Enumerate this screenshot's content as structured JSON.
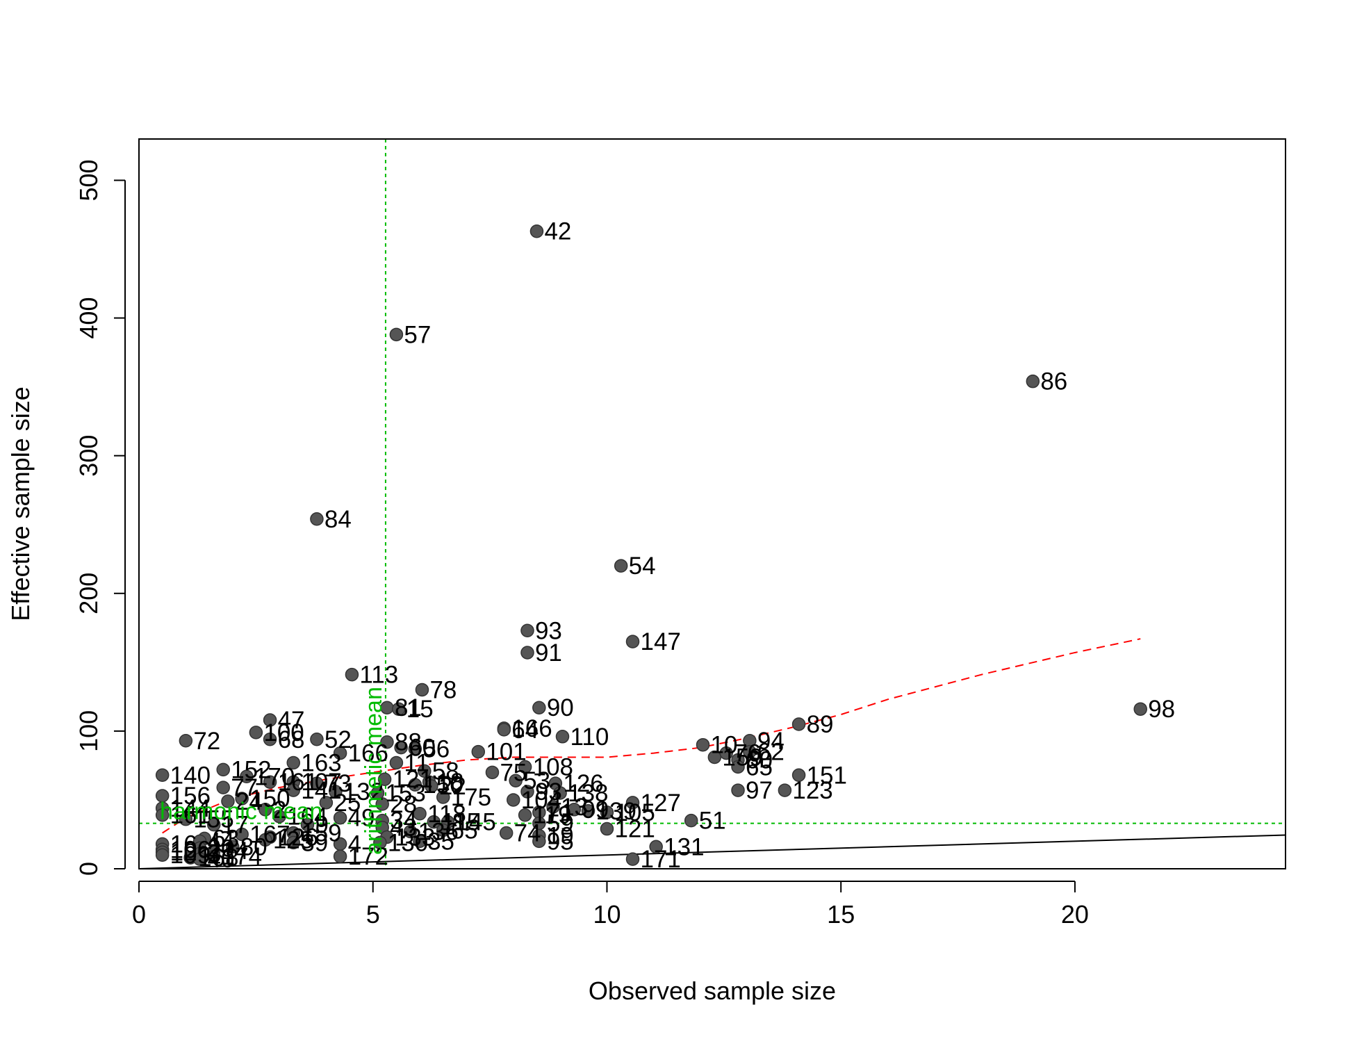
{
  "chart_data": {
    "type": "scatter",
    "title": "",
    "xlabel": "Observed sample size",
    "ylabel": "Effective sample size",
    "xlim": [
      0,
      24.5
    ],
    "ylim": [
      0,
      530
    ],
    "xticks": [
      0,
      5,
      10,
      15,
      20
    ],
    "yticks": [
      0,
      100,
      200,
      300,
      400,
      500
    ],
    "grid": false,
    "legend": "none",
    "colors": {
      "points": "#555555",
      "point_stroke": "#333333",
      "labels": "#000000",
      "trend": "#ff0000",
      "reference": "#00bb00",
      "identity": "#000000"
    },
    "points": [
      {
        "x": 8.5,
        "y": 463,
        "label": "42"
      },
      {
        "x": 5.5,
        "y": 388,
        "label": "57"
      },
      {
        "x": 19.1,
        "y": 354,
        "label": "86"
      },
      {
        "x": 3.8,
        "y": 254,
        "label": "84"
      },
      {
        "x": 10.3,
        "y": 220,
        "label": "54"
      },
      {
        "x": 8.3,
        "y": 173,
        "label": "93"
      },
      {
        "x": 10.55,
        "y": 165,
        "label": "147"
      },
      {
        "x": 8.3,
        "y": 157,
        "label": "91"
      },
      {
        "x": 4.55,
        "y": 141,
        "label": "113"
      },
      {
        "x": 6.05,
        "y": 130,
        "label": "78"
      },
      {
        "x": 8.55,
        "y": 117,
        "label": "90"
      },
      {
        "x": 21.4,
        "y": 116,
        "label": "98"
      },
      {
        "x": 5.3,
        "y": 117,
        "label": "81"
      },
      {
        "x": 5.55,
        "y": 116,
        "label": "15"
      },
      {
        "x": 2.8,
        "y": 108,
        "label": "47"
      },
      {
        "x": 14.1,
        "y": 105,
        "label": "89"
      },
      {
        "x": 7.8,
        "y": 102,
        "label": "166"
      },
      {
        "x": 7.8,
        "y": 101,
        "label": "64"
      },
      {
        "x": 2.5,
        "y": 99,
        "label": "100"
      },
      {
        "x": 9.05,
        "y": 96,
        "label": "110"
      },
      {
        "x": 1.0,
        "y": 93,
        "label": "72"
      },
      {
        "x": 2.8,
        "y": 94,
        "label": "68"
      },
      {
        "x": 3.8,
        "y": 94,
        "label": "52"
      },
      {
        "x": 5.3,
        "y": 92,
        "label": "88"
      },
      {
        "x": 13.05,
        "y": 93,
        "label": "94"
      },
      {
        "x": 12.05,
        "y": 90,
        "label": "10"
      },
      {
        "x": 5.6,
        "y": 88,
        "label": "60"
      },
      {
        "x": 5.9,
        "y": 87,
        "label": "56"
      },
      {
        "x": 7.25,
        "y": 85,
        "label": "101"
      },
      {
        "x": 4.3,
        "y": 84,
        "label": "166"
      },
      {
        "x": 13.05,
        "y": 85,
        "label": "62"
      },
      {
        "x": 12.55,
        "y": 84,
        "label": "76"
      },
      {
        "x": 12.3,
        "y": 81,
        "label": "159"
      },
      {
        "x": 12.8,
        "y": 79,
        "label": "60"
      },
      {
        "x": 3.3,
        "y": 77,
        "label": "163"
      },
      {
        "x": 5.5,
        "y": 77,
        "label": "11"
      },
      {
        "x": 12.8,
        "y": 74,
        "label": "65"
      },
      {
        "x": 8.25,
        "y": 74,
        "label": "108"
      },
      {
        "x": 1.8,
        "y": 72,
        "label": "152"
      },
      {
        "x": 6.1,
        "y": 71,
        "label": "58"
      },
      {
        "x": 7.55,
        "y": 70,
        "label": "75"
      },
      {
        "x": 0.5,
        "y": 68,
        "label": "140"
      },
      {
        "x": 14.1,
        "y": 68,
        "label": "151"
      },
      {
        "x": 2.3,
        "y": 67,
        "label": "170"
      },
      {
        "x": 5.25,
        "y": 65,
        "label": "121"
      },
      {
        "x": 8.05,
        "y": 64,
        "label": "53"
      },
      {
        "x": 2.8,
        "y": 63,
        "label": "161"
      },
      {
        "x": 3.3,
        "y": 63,
        "label": "107"
      },
      {
        "x": 6.2,
        "y": 63,
        "label": "18"
      },
      {
        "x": 8.9,
        "y": 62,
        "label": "126"
      },
      {
        "x": 3.8,
        "y": 62,
        "label": "73"
      },
      {
        "x": 5.9,
        "y": 61,
        "label": "150"
      },
      {
        "x": 1.8,
        "y": 59,
        "label": "77"
      },
      {
        "x": 6.25,
        "y": 60,
        "label": "22"
      },
      {
        "x": 12.8,
        "y": 57,
        "label": "97"
      },
      {
        "x": 13.8,
        "y": 57,
        "label": "123"
      },
      {
        "x": 3.3,
        "y": 57,
        "label": "141"
      },
      {
        "x": 4.2,
        "y": 56,
        "label": "132"
      },
      {
        "x": 8.3,
        "y": 56,
        "label": "93"
      },
      {
        "x": 5.1,
        "y": 55,
        "label": "153"
      },
      {
        "x": 9.0,
        "y": 55,
        "label": "138"
      },
      {
        "x": 0.5,
        "y": 53,
        "label": "156"
      },
      {
        "x": 6.5,
        "y": 52,
        "label": "175"
      },
      {
        "x": 2.2,
        "y": 51,
        "label": "150"
      },
      {
        "x": 8.0,
        "y": 50,
        "label": "104"
      },
      {
        "x": 1.9,
        "y": 49,
        "label": "24"
      },
      {
        "x": 10.55,
        "y": 48,
        "label": "127"
      },
      {
        "x": 4.0,
        "y": 48,
        "label": "25"
      },
      {
        "x": 5.2,
        "y": 47,
        "label": "28"
      },
      {
        "x": 8.85,
        "y": 45,
        "label": "13"
      },
      {
        "x": 0.5,
        "y": 44,
        "label": "144"
      },
      {
        "x": 2.7,
        "y": 43,
        "label": "2"
      },
      {
        "x": 9.3,
        "y": 43,
        "label": "99"
      },
      {
        "x": 9.6,
        "y": 42,
        "label": "139"
      },
      {
        "x": 8.55,
        "y": 41,
        "label": "71"
      },
      {
        "x": 10.0,
        "y": 41,
        "label": "105"
      },
      {
        "x": 6.0,
        "y": 40,
        "label": "118"
      },
      {
        "x": 0.5,
        "y": 39,
        "label": "161"
      },
      {
        "x": 8.25,
        "y": 39,
        "label": "119"
      },
      {
        "x": 3.0,
        "y": 38,
        "label": "164"
      },
      {
        "x": 4.3,
        "y": 37,
        "label": "49"
      },
      {
        "x": 1.0,
        "y": 36,
        "label": "155"
      },
      {
        "x": 5.2,
        "y": 35,
        "label": "34"
      },
      {
        "x": 11.8,
        "y": 35,
        "label": "51"
      },
      {
        "x": 6.3,
        "y": 34,
        "label": "115"
      },
      {
        "x": 6.6,
        "y": 34,
        "label": "145"
      },
      {
        "x": 8.55,
        "y": 33,
        "label": "59"
      },
      {
        "x": 1.6,
        "y": 32,
        "label": "17"
      },
      {
        "x": 3.6,
        "y": 32,
        "label": "9"
      },
      {
        "x": 10.0,
        "y": 29,
        "label": "121"
      },
      {
        "x": 5.2,
        "y": 30,
        "label": "43"
      },
      {
        "x": 6.5,
        "y": 28,
        "label": "65"
      },
      {
        "x": 7.85,
        "y": 26,
        "label": "74"
      },
      {
        "x": 3.3,
        "y": 26,
        "label": "159"
      },
      {
        "x": 5.8,
        "y": 27,
        "label": "136"
      },
      {
        "x": 2.2,
        "y": 25,
        "label": "167"
      },
      {
        "x": 8.55,
        "y": 24,
        "label": "19"
      },
      {
        "x": 2.8,
        "y": 23,
        "label": "126"
      },
      {
        "x": 5.3,
        "y": 23,
        "label": "133"
      },
      {
        "x": 1.4,
        "y": 22,
        "label": "63"
      },
      {
        "x": 2.7,
        "y": 21,
        "label": "125"
      },
      {
        "x": 1.3,
        "y": 20,
        "label": "44"
      },
      {
        "x": 8.55,
        "y": 20,
        "label": "95"
      },
      {
        "x": 6.0,
        "y": 20,
        "label": "35"
      },
      {
        "x": 3.3,
        "y": 19,
        "label": "39"
      },
      {
        "x": 5.15,
        "y": 19,
        "label": "130"
      },
      {
        "x": 4.3,
        "y": 18,
        "label": "4"
      },
      {
        "x": 0.5,
        "y": 18,
        "label": "16"
      },
      {
        "x": 11.05,
        "y": 16,
        "label": "131"
      },
      {
        "x": 2.0,
        "y": 16,
        "label": "80"
      },
      {
        "x": 1.3,
        "y": 15,
        "label": "20"
      },
      {
        "x": 0.5,
        "y": 14,
        "label": "106"
      },
      {
        "x": 1.6,
        "y": 13,
        "label": "14"
      },
      {
        "x": 0.5,
        "y": 12,
        "label": "12"
      },
      {
        "x": 1.3,
        "y": 11,
        "label": "3"
      },
      {
        "x": 0.5,
        "y": 10,
        "label": "109"
      },
      {
        "x": 1.6,
        "y": 9,
        "label": "174"
      },
      {
        "x": 4.3,
        "y": 9,
        "label": "172"
      },
      {
        "x": 1.1,
        "y": 8,
        "label": "168"
      },
      {
        "x": 1.3,
        "y": 7,
        "label": "40"
      },
      {
        "x": 10.55,
        "y": 7,
        "label": "171"
      }
    ],
    "trend_line": {
      "style": "dashed",
      "x": [
        0.5,
        1.0,
        2.0,
        3.0,
        4.0,
        5.0,
        6.0,
        7.0,
        8.0,
        9.0,
        10.0,
        11.0,
        12.0,
        13.0,
        14.0,
        15.0,
        16.0,
        17.0,
        18.0,
        19.0,
        20.0,
        21.4
      ],
      "y": [
        26,
        37,
        51,
        59,
        65,
        70,
        75,
        79,
        81,
        81,
        81,
        84,
        88,
        95,
        103,
        112,
        123,
        132,
        141,
        149,
        157,
        167
      ]
    },
    "identity_line": {
      "x": [
        0,
        24.5
      ],
      "y": [
        0,
        24.5
      ]
    },
    "reference_lines": [
      {
        "orientation": "vertical",
        "value": 5.27,
        "label": "arithmetic mean"
      },
      {
        "orientation": "horizontal",
        "value": 33,
        "label": "harmonic mean"
      }
    ]
  }
}
